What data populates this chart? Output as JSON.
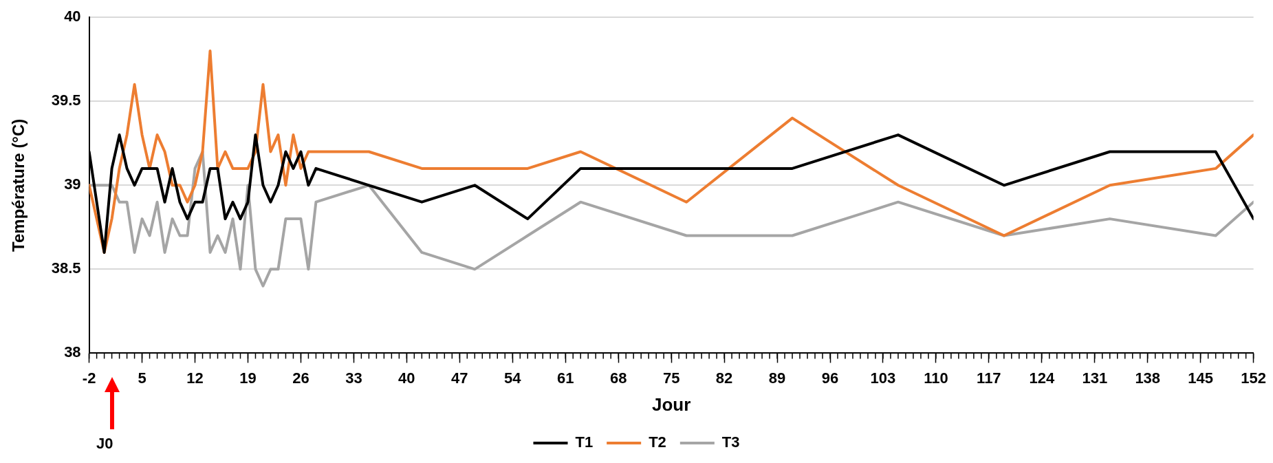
{
  "chart_data": {
    "type": "line",
    "xlabel": "Jour",
    "ylabel": "Température (°C)",
    "xlim": [
      -2,
      152
    ],
    "xticks": [
      -2,
      5,
      12,
      19,
      26,
      33,
      40,
      47,
      54,
      61,
      68,
      75,
      82,
      89,
      96,
      103,
      110,
      117,
      124,
      131,
      138,
      145,
      152
    ],
    "ylim": [
      38,
      40
    ],
    "yticks": [
      38,
      38.5,
      39,
      39.5,
      40
    ],
    "grid": "y",
    "legend": "bottom",
    "marker": "none",
    "line_style": "solid",
    "x": [
      -2,
      -1,
      0,
      1,
      2,
      3,
      4,
      5,
      6,
      7,
      8,
      9,
      10,
      11,
      12,
      13,
      14,
      15,
      16,
      17,
      18,
      19,
      20,
      21,
      22,
      23,
      24,
      25,
      26,
      27,
      28,
      35,
      42,
      49,
      56,
      63,
      77,
      91,
      105,
      119,
      133,
      147,
      152
    ],
    "series": [
      {
        "name": "T1",
        "color": "#000000",
        "values": [
          39.2,
          38.9,
          38.6,
          39.1,
          39.3,
          39.1,
          39.0,
          39.1,
          39.1,
          39.1,
          38.9,
          39.1,
          38.9,
          38.8,
          38.9,
          38.9,
          39.1,
          39.1,
          38.8,
          38.9,
          38.8,
          38.9,
          39.3,
          39.0,
          38.9,
          39.0,
          39.2,
          39.1,
          39.2,
          39.0,
          39.1,
          39.0,
          38.9,
          39.0,
          38.8,
          39.1,
          39.1,
          39.1,
          39.3,
          39.0,
          39.2,
          39.2,
          38.8
        ]
      },
      {
        "name": "T2",
        "color": "#ed7d31",
        "values": [
          39.0,
          38.8,
          38.6,
          38.8,
          39.1,
          39.3,
          39.6,
          39.3,
          39.1,
          39.3,
          39.2,
          39.0,
          39.0,
          38.9,
          39.0,
          39.2,
          39.8,
          39.1,
          39.2,
          39.1,
          39.1,
          39.1,
          39.2,
          39.6,
          39.2,
          39.3,
          39.0,
          39.3,
          39.1,
          39.2,
          39.2,
          39.2,
          39.1,
          39.1,
          39.1,
          39.2,
          38.9,
          39.4,
          39.0,
          38.7,
          39.0,
          39.1,
          39.3
        ]
      },
      {
        "name": "T3",
        "color": "#a5a5a5",
        "values": [
          39.0,
          39.0,
          39.0,
          39.0,
          38.9,
          38.9,
          38.6,
          38.8,
          38.7,
          38.9,
          38.6,
          38.8,
          38.7,
          38.7,
          39.1,
          39.2,
          38.6,
          38.7,
          38.6,
          38.8,
          38.5,
          39.0,
          38.5,
          38.4,
          38.5,
          38.5,
          38.8,
          38.8,
          38.8,
          38.5,
          38.9,
          39.0,
          38.6,
          38.5,
          38.7,
          38.9,
          38.7,
          38.7,
          38.9,
          38.7,
          38.8,
          38.7,
          38.9
        ]
      }
    ],
    "annotations": [
      "J0"
    ]
  }
}
